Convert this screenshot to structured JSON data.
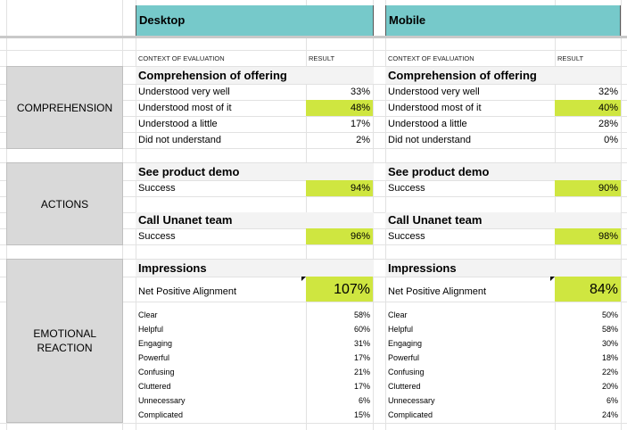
{
  "headers": {
    "desktop": "Desktop",
    "mobile": "Mobile"
  },
  "columns": {
    "context": "CONTEXT OF EVALUATION",
    "result": "RESULT"
  },
  "sections": {
    "comprehension": "COMPREHENSION",
    "actions": "ACTIONS",
    "emotional": "EMOTIONAL REACTION"
  },
  "titles": {
    "comprehension": "Comprehension of offering",
    "demo": "See product demo",
    "call": "Call Unanet team",
    "impressions": "Impressions"
  },
  "comp_labels": [
    "Understood very well",
    "Understood most of it",
    "Understood a little",
    "Did not understand"
  ],
  "success_label": "Success",
  "npa_label": "Net Positive Alignment",
  "imp_labels": [
    "Clear",
    "Helpful",
    "Engaging",
    "Powerful",
    "Confusing",
    "Cluttered",
    "Unnecessary",
    "Complicated"
  ],
  "desktop": {
    "comp": [
      "33%",
      "48%",
      "17%",
      "2%"
    ],
    "demo": "94%",
    "call": "96%",
    "npa": "107%",
    "imp": [
      "58%",
      "60%",
      "31%",
      "17%",
      "21%",
      "17%",
      "6%",
      "15%"
    ]
  },
  "mobile": {
    "comp": [
      "32%",
      "40%",
      "28%",
      "0%"
    ],
    "demo": "90%",
    "call": "98%",
    "npa": "84%",
    "imp": [
      "50%",
      "58%",
      "30%",
      "18%",
      "22%",
      "20%",
      "6%",
      "24%"
    ]
  },
  "colors": {
    "header": "#76c9ca",
    "highlight": "#cfe640",
    "section": "#d9d9d9",
    "title_row": "#f3f3f3"
  }
}
